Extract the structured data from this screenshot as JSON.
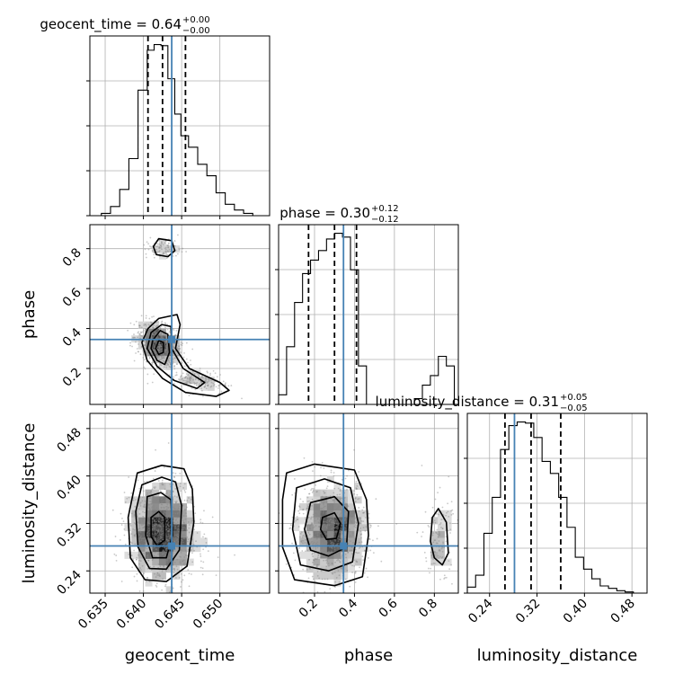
{
  "chart_data": {
    "type": "corner",
    "parameters": [
      {
        "name": "geocent_time",
        "median": "0.64",
        "plus": "+0.00",
        "minus": "−0.00",
        "range": [
          0.633,
          0.6565
        ],
        "ticks": [
          0.635,
          0.64,
          0.645,
          0.65
        ],
        "tick_labels": [
          "0.635",
          "0.640",
          "0.645",
          "0.650"
        ],
        "truth": 0.6437,
        "quantiles": [
          0.6406,
          0.6425,
          0.6455
        ]
      },
      {
        "name": "phase",
        "median": "0.30",
        "plus": "+0.12",
        "minus": "−0.12",
        "range": [
          0.02,
          0.92
        ],
        "ticks": [
          0.2,
          0.4,
          0.6,
          0.8
        ],
        "tick_labels": [
          "0.2",
          "0.4",
          "0.6",
          "0.8"
        ],
        "truth": 0.345,
        "quantiles": [
          0.17,
          0.3,
          0.41
        ]
      },
      {
        "name": "luminosity_distance",
        "median": "0.31",
        "plus": "+0.05",
        "minus": "−0.05",
        "range": [
          0.2025,
          0.5055
        ],
        "ticks": [
          0.24,
          0.32,
          0.4,
          0.48
        ],
        "tick_labels": [
          "0.24",
          "0.32",
          "0.40",
          "0.48"
        ],
        "truth": 0.282,
        "quantiles": [
          0.266,
          0.31,
          0.36
        ]
      }
    ],
    "histograms": {
      "geocent_time": {
        "bin_edges": [
          0.6345,
          0.6357,
          0.6369,
          0.6381,
          0.6393,
          0.6405,
          0.6414,
          0.6423,
          0.6432,
          0.6441,
          0.6449,
          0.6459,
          0.6471,
          0.6483,
          0.6495,
          0.6507,
          0.6519,
          0.6531,
          0.6543
        ],
        "counts": [
          0.2,
          0.8,
          2.3,
          5.0,
          11.0,
          14.5,
          15.0,
          14.9,
          12.0,
          8.9,
          7.0,
          6.0,
          4.5,
          3.5,
          2.0,
          1.0,
          0.5,
          0.2
        ]
      },
      "phase": {
        "bin_edges": [
          0.02,
          0.06,
          0.1,
          0.14,
          0.18,
          0.22,
          0.26,
          0.3,
          0.34,
          0.38,
          0.42,
          0.46,
          0.5,
          0.54,
          0.58,
          0.62,
          0.66,
          0.7,
          0.74,
          0.78,
          0.82,
          0.86,
          0.9
        ],
        "counts": [
          0.5,
          3.0,
          5.3,
          6.8,
          7.5,
          8.0,
          8.6,
          8.9,
          8.7,
          7.0,
          2.0,
          0.0,
          0.0,
          0.0,
          0.0,
          0.0,
          0.0,
          0.3,
          1.0,
          1.5,
          2.5,
          2.0
        ]
      },
      "luminosity_distance": {
        "bin_edges": [
          0.2025,
          0.2165,
          0.2305,
          0.2445,
          0.2585,
          0.2725,
          0.2865,
          0.3005,
          0.3145,
          0.3285,
          0.3425,
          0.3565,
          0.3705,
          0.3845,
          0.3985,
          0.4125,
          0.4265,
          0.4405,
          0.4545,
          0.4685,
          0.4825
        ],
        "counts": [
          0.5,
          1.5,
          5.0,
          8.0,
          12.0,
          14.0,
          14.3,
          14.2,
          13.0,
          11.0,
          10.0,
          8.0,
          5.5,
          3.0,
          2.0,
          1.2,
          0.6,
          0.4,
          0.2,
          0.1
        ]
      }
    },
    "panels_2d": [
      {
        "x": "geocent_time",
        "y": "phase",
        "truth": [
          0.6437,
          0.345
        ],
        "clusters": [
          {
            "center": [
              0.642,
              0.32
            ],
            "sd": [
              0.0014,
              0.05
            ],
            "weight": 0.82,
            "tilt": -0.4
          },
          {
            "center": [
              0.6472,
              0.14
            ],
            "sd": [
              0.002,
              0.03
            ],
            "weight": 0.18,
            "tilt": -0.3
          },
          {
            "center": [
              0.6426,
              0.8
            ],
            "sd": [
              0.0012,
              0.025
            ],
            "weight": 0.1,
            "tilt": 0
          }
        ],
        "contours": [
          [
            [
              0.6406,
              0.4
            ],
            [
              0.642,
              0.45
            ],
            [
              0.6444,
              0.47
            ],
            [
              0.6448,
              0.42
            ],
            [
              0.6442,
              0.3
            ],
            [
              0.646,
              0.2
            ],
            [
              0.65,
              0.13
            ],
            [
              0.6512,
              0.09
            ],
            [
              0.6495,
              0.06
            ],
            [
              0.6455,
              0.08
            ],
            [
              0.6425,
              0.15
            ],
            [
              0.6405,
              0.24
            ],
            [
              0.6398,
              0.33
            ]
          ],
          [
            [
              0.641,
              0.38
            ],
            [
              0.6424,
              0.42
            ],
            [
              0.6436,
              0.41
            ],
            [
              0.6437,
              0.3
            ],
            [
              0.6452,
              0.2
            ],
            [
              0.648,
              0.13
            ],
            [
              0.647,
              0.1
            ],
            [
              0.644,
              0.14
            ],
            [
              0.6418,
              0.21
            ],
            [
              0.6405,
              0.3
            ]
          ],
          [
            [
              0.6412,
              0.34
            ],
            [
              0.6422,
              0.39
            ],
            [
              0.6432,
              0.37
            ],
            [
              0.6434,
              0.28
            ],
            [
              0.6428,
              0.22
            ],
            [
              0.6418,
              0.24
            ],
            [
              0.641,
              0.3
            ]
          ],
          [
            [
              0.6416,
              0.3
            ],
            [
              0.642,
              0.34
            ],
            [
              0.6426,
              0.33
            ],
            [
              0.6426,
              0.28
            ],
            [
              0.642,
              0.27
            ]
          ],
          [
            [
              0.6413,
              0.81
            ],
            [
              0.642,
              0.85
            ],
            [
              0.6437,
              0.84
            ],
            [
              0.6441,
              0.79
            ],
            [
              0.6432,
              0.76
            ],
            [
              0.6417,
              0.77
            ]
          ]
        ]
      },
      {
        "x": "geocent_time",
        "y": "luminosity_distance",
        "truth": [
          0.6437,
          0.282
        ],
        "clusters": [
          {
            "center": [
              0.6425,
              0.305
            ],
            "sd": [
              0.0022,
              0.042
            ],
            "weight": 1.0,
            "tilt": 0
          }
        ],
        "contours": [
          [
            [
              0.6392,
              0.405
            ],
            [
              0.6424,
              0.418
            ],
            [
              0.6453,
              0.412
            ],
            [
              0.6464,
              0.378
            ],
            [
              0.6466,
              0.322
            ],
            [
              0.6457,
              0.248
            ],
            [
              0.643,
              0.222
            ],
            [
              0.6402,
              0.225
            ],
            [
              0.6383,
              0.262
            ],
            [
              0.638,
              0.33
            ]
          ],
          [
            [
              0.6398,
              0.385
            ],
            [
              0.6424,
              0.398
            ],
            [
              0.6442,
              0.39
            ],
            [
              0.645,
              0.35
            ],
            [
              0.6447,
              0.275
            ],
            [
              0.643,
              0.243
            ],
            [
              0.6408,
              0.244
            ],
            [
              0.6393,
              0.28
            ],
            [
              0.639,
              0.34
            ]
          ],
          [
            [
              0.6405,
              0.365
            ],
            [
              0.6423,
              0.372
            ],
            [
              0.6436,
              0.36
            ],
            [
              0.6438,
              0.3
            ],
            [
              0.643,
              0.262
            ],
            [
              0.6412,
              0.262
            ],
            [
              0.6403,
              0.3
            ]
          ],
          [
            [
              0.641,
              0.33
            ],
            [
              0.642,
              0.34
            ],
            [
              0.6428,
              0.33
            ],
            [
              0.6428,
              0.292
            ],
            [
              0.6418,
              0.282
            ],
            [
              0.641,
              0.298
            ]
          ]
        ]
      },
      {
        "x": "phase",
        "y": "luminosity_distance",
        "truth": [
          0.345,
          0.282
        ],
        "clusters": [
          {
            "center": [
              0.29,
              0.305
            ],
            "sd": [
              0.09,
              0.042
            ],
            "weight": 0.88,
            "tilt": 0
          },
          {
            "center": [
              0.82,
              0.29
            ],
            "sd": [
              0.035,
              0.04
            ],
            "weight": 0.12,
            "tilt": 0
          }
        ],
        "contours": [
          [
            [
              0.06,
              0.405
            ],
            [
              0.2,
              0.42
            ],
            [
              0.4,
              0.41
            ],
            [
              0.46,
              0.36
            ],
            [
              0.47,
              0.3
            ],
            [
              0.44,
              0.23
            ],
            [
              0.3,
              0.215
            ],
            [
              0.1,
              0.225
            ],
            [
              0.04,
              0.28
            ],
            [
              0.04,
              0.36
            ]
          ],
          [
            [
              0.11,
              0.38
            ],
            [
              0.25,
              0.395
            ],
            [
              0.38,
              0.38
            ],
            [
              0.42,
              0.32
            ],
            [
              0.39,
              0.255
            ],
            [
              0.27,
              0.24
            ],
            [
              0.13,
              0.25
            ],
            [
              0.09,
              0.31
            ]
          ],
          [
            [
              0.18,
              0.355
            ],
            [
              0.3,
              0.365
            ],
            [
              0.37,
              0.34
            ],
            [
              0.36,
              0.28
            ],
            [
              0.27,
              0.265
            ],
            [
              0.18,
              0.275
            ],
            [
              0.15,
              0.31
            ]
          ],
          [
            [
              0.24,
              0.33
            ],
            [
              0.3,
              0.338
            ],
            [
              0.33,
              0.32
            ],
            [
              0.31,
              0.295
            ],
            [
              0.26,
              0.293
            ],
            [
              0.23,
              0.31
            ]
          ],
          [
            [
              0.79,
              0.33
            ],
            [
              0.82,
              0.345
            ],
            [
              0.86,
              0.322
            ],
            [
              0.87,
              0.27
            ],
            [
              0.84,
              0.25
            ],
            [
              0.8,
              0.262
            ],
            [
              0.78,
              0.29
            ]
          ]
        ]
      }
    ]
  }
}
